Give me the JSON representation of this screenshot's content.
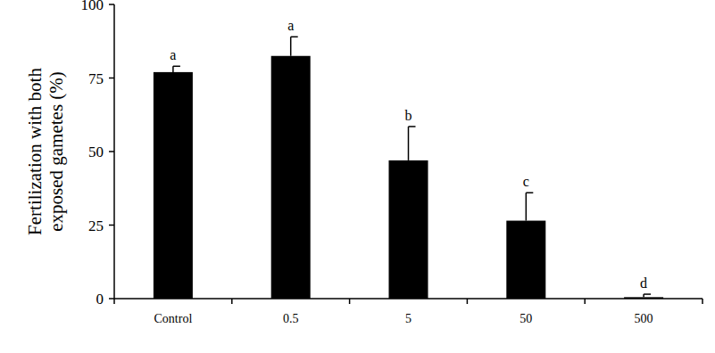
{
  "chart_data": {
    "type": "bar",
    "ylabel": [
      "Fertilization with both",
      "exposed gametes (%)"
    ],
    "categories": [
      "Control",
      "0.5",
      "5",
      "50",
      "500"
    ],
    "values": [
      77,
      82.5,
      47,
      26.5,
      0.5
    ],
    "errors": [
      2,
      6.5,
      11.5,
      9.5,
      1
    ],
    "annotations": [
      "a",
      "a",
      "b",
      "c",
      "d"
    ],
    "color": "#000000",
    "ylim": [
      0,
      100
    ],
    "yticks": [
      0,
      25,
      50,
      75,
      100
    ],
    "grid": false
  }
}
